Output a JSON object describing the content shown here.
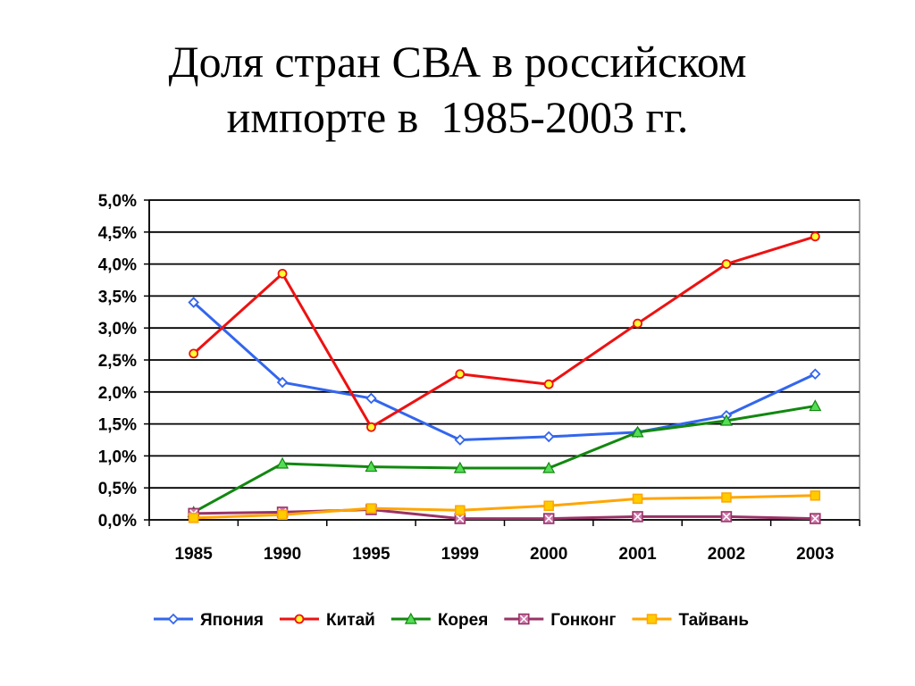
{
  "title_lines": [
    "Доля стран СВА в российском",
    "импорте в  1985-2003 гг."
  ],
  "chart_data": {
    "type": "line",
    "title": "Доля стран СВА в российском импорте в  1985-2003 гг.",
    "categories": [
      "1985",
      "1990",
      "1995",
      "1999",
      "2000",
      "2001",
      "2002",
      "2003"
    ],
    "y_tick_labels": [
      "0,0%",
      "0,5%",
      "1,0%",
      "1,5%",
      "2,0%",
      "2,5%",
      "3,0%",
      "3,5%",
      "4,0%",
      "4,5%",
      "5,0%"
    ],
    "ylim": [
      0,
      5
    ],
    "grid": true,
    "legend_position": "bottom",
    "series": [
      {
        "name": "Япония",
        "color": "#3366ee",
        "marker": "diamond",
        "values": [
          3.4,
          2.15,
          1.9,
          1.25,
          1.3,
          1.37,
          1.63,
          2.28
        ]
      },
      {
        "name": "Китай",
        "color": "#ee1111",
        "marker": "circle",
        "values": [
          2.6,
          3.85,
          1.45,
          2.28,
          2.12,
          3.07,
          4.0,
          4.43
        ]
      },
      {
        "name": "Корея",
        "color": "#11880f",
        "marker": "triangle",
        "values": [
          0.12,
          0.88,
          0.83,
          0.81,
          0.81,
          1.37,
          1.55,
          1.78
        ]
      },
      {
        "name": "Гонконг",
        "color": "#993366",
        "marker": "xsquare",
        "values": [
          0.1,
          0.12,
          0.16,
          0.02,
          0.02,
          0.05,
          0.05,
          0.02
        ]
      },
      {
        "name": "Тайвань",
        "color": "#ffa500",
        "marker": "square",
        "values": [
          0.03,
          0.08,
          0.18,
          0.15,
          0.22,
          0.33,
          0.35,
          0.38
        ]
      }
    ]
  }
}
